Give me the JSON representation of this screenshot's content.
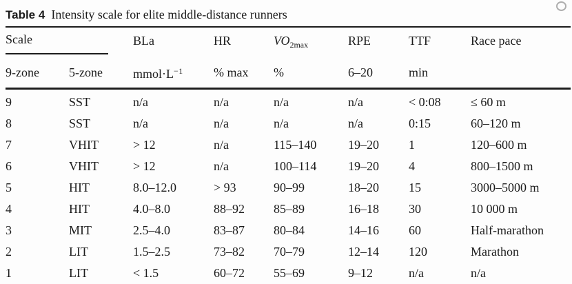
{
  "title": {
    "label": "Table 4",
    "caption": "Intensity scale for elite middle-distance runners"
  },
  "table": {
    "header_row1": {
      "scale": "Scale",
      "bla": "BLa",
      "hr": "HR",
      "vo2max": {
        "base": "VO",
        "sub": "2max"
      },
      "rpe": "RPE",
      "ttf": "TTF",
      "race_pace": "Race pace"
    },
    "header_row2": {
      "zone9": "9-zone",
      "zone5": "5-zone",
      "bla_unit": {
        "base": "mmol·L",
        "sup": "−1"
      },
      "hr_unit": "% max",
      "vo2_unit": "%",
      "rpe_unit": "6–20",
      "ttf_unit": "min",
      "race_pace_unit": ""
    },
    "rows": [
      [
        "9",
        "SST",
        "n/a",
        "n/a",
        "n/a",
        "n/a",
        "< 0:08",
        "≤ 60 m"
      ],
      [
        "8",
        "SST",
        "n/a",
        "n/a",
        "n/a",
        "n/a",
        "0:15",
        "60–120 m"
      ],
      [
        "7",
        "VHIT",
        "> 12",
        "n/a",
        "115–140",
        "19–20",
        "1",
        "120–600 m"
      ],
      [
        "6",
        "VHIT",
        "> 12",
        "n/a",
        "100–114",
        "19–20",
        "4",
        "800–1500 m"
      ],
      [
        "5",
        "HIT",
        "8.0–12.0",
        "> 93",
        "90–99",
        "18–20",
        "15",
        "3000–5000 m"
      ],
      [
        "4",
        "HIT",
        "4.0–8.0",
        "88–92",
        "85–89",
        "16–18",
        "30",
        "10 000 m"
      ],
      [
        "3",
        "MIT",
        "2.5–4.0",
        "83–87",
        "80–84",
        "14–16",
        "60",
        "Half-marathon"
      ],
      [
        "2",
        "LIT",
        "1.5–2.5",
        "73–82",
        "70–79",
        "12–14",
        "120",
        "Marathon"
      ],
      [
        "1",
        "LIT",
        "< 1.5",
        "60–72",
        "55–69",
        "9–12",
        "n/a",
        "n/a"
      ]
    ]
  },
  "colors": {
    "text": "#1b1b1b",
    "rule": "#1c1c1c",
    "background": "#fdfdfd"
  }
}
